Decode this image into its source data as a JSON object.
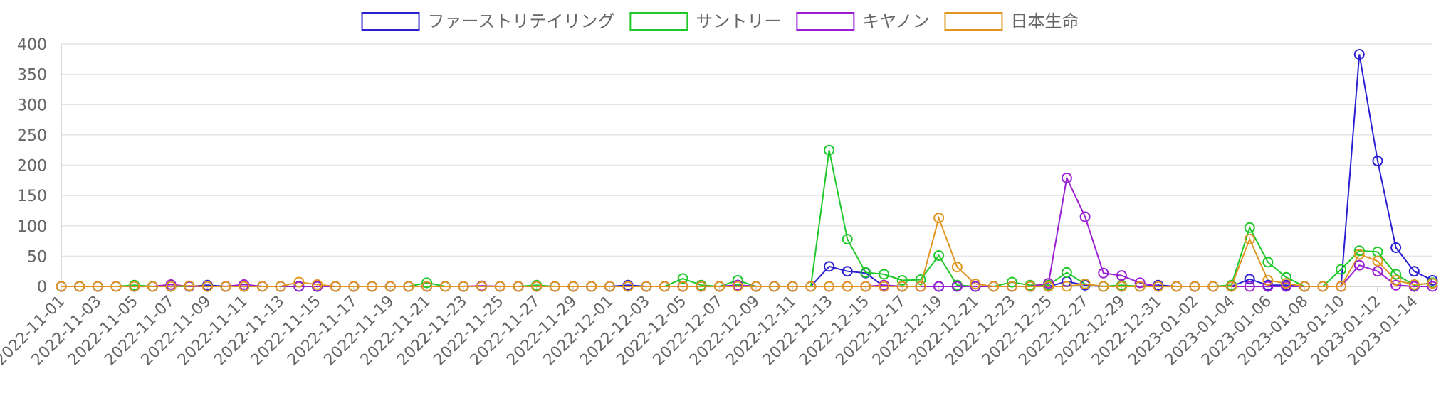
{
  "chart_data": {
    "type": "line",
    "title": "",
    "xlabel": "",
    "ylabel": "",
    "ylim": [
      0,
      400
    ],
    "yticks": [
      0,
      50,
      100,
      150,
      200,
      250,
      300,
      350,
      400
    ],
    "grid": true,
    "legend_position": "top-center",
    "x": [
      "2022-11-01",
      "2022-11-02",
      "2022-11-03",
      "2022-11-04",
      "2022-11-05",
      "2022-11-06",
      "2022-11-07",
      "2022-11-08",
      "2022-11-09",
      "2022-11-10",
      "2022-11-11",
      "2022-11-12",
      "2022-11-13",
      "2022-11-14",
      "2022-11-15",
      "2022-11-16",
      "2022-11-17",
      "2022-11-18",
      "2022-11-19",
      "2022-11-20",
      "2022-11-21",
      "2022-11-22",
      "2022-11-23",
      "2022-11-24",
      "2022-11-25",
      "2022-11-26",
      "2022-11-27",
      "2022-11-28",
      "2022-11-29",
      "2022-11-30",
      "2022-12-01",
      "2022-12-02",
      "2022-12-03",
      "2022-12-04",
      "2022-12-05",
      "2022-12-06",
      "2022-12-07",
      "2022-12-08",
      "2022-12-09",
      "2022-12-10",
      "2022-12-11",
      "2022-12-12",
      "2022-12-13",
      "2022-12-14",
      "2022-12-15",
      "2022-12-16",
      "2022-12-17",
      "2022-12-18",
      "2022-12-19",
      "2022-12-20",
      "2022-12-21",
      "2022-12-22",
      "2022-12-23",
      "2022-12-24",
      "2022-12-25",
      "2022-12-26",
      "2022-12-27",
      "2022-12-28",
      "2022-12-29",
      "2022-12-30",
      "2022-12-31",
      "2023-01-01",
      "2023-01-02",
      "2023-01-03",
      "2023-01-04",
      "2023-01-05",
      "2023-01-06",
      "2023-01-07",
      "2023-01-08",
      "2023-01-09",
      "2023-01-10",
      "2023-01-11",
      "2023-01-12",
      "2023-01-13",
      "2023-01-14",
      "2023-01-15"
    ],
    "x_tick_labels": [
      "2022-11-01",
      "2022-11-03",
      "2022-11-05",
      "2022-11-07",
      "2022-11-09",
      "2022-11-11",
      "2022-11-13",
      "2022-11-15",
      "2022-11-17",
      "2022-11-19",
      "2022-11-21",
      "2022-11-23",
      "2022-11-25",
      "2022-11-27",
      "2022-11-29",
      "2022-12-01",
      "2022-12-03",
      "2022-12-05",
      "2022-12-07",
      "2022-12-09",
      "2022-12-11",
      "2022-12-13",
      "2022-12-15",
      "2022-12-17",
      "2022-12-19",
      "2022-12-21",
      "2022-12-23",
      "2022-12-25",
      "2022-12-27",
      "2022-12-29",
      "2022-12-31",
      "2023-01-02",
      "2023-01-04",
      "2023-01-06",
      "2023-01-08",
      "2023-01-10",
      "2023-01-12",
      "2023-01-14"
    ],
    "series": [
      {
        "name": "ファーストリテイリング",
        "color": "#2a1fd1",
        "values": [
          0,
          0,
          0,
          0,
          0,
          0,
          0,
          0,
          2,
          0,
          0,
          0,
          0,
          0,
          0,
          0,
          0,
          0,
          0,
          0,
          0,
          0,
          0,
          0,
          0,
          0,
          0,
          0,
          0,
          0,
          0,
          2,
          0,
          0,
          0,
          0,
          0,
          2,
          0,
          0,
          0,
          0,
          33,
          25,
          22,
          0,
          0,
          0,
          0,
          0,
          0,
          0,
          0,
          0,
          0,
          8,
          2,
          0,
          0,
          0,
          2,
          0,
          0,
          0,
          0,
          12,
          2,
          2,
          0,
          0,
          0,
          383,
          207,
          64,
          25,
          10
        ]
      },
      {
        "name": "サントリー",
        "color": "#1fc82a",
        "values": [
          0,
          0,
          0,
          0,
          2,
          0,
          0,
          0,
          0,
          0,
          0,
          0,
          0,
          0,
          0,
          0,
          0,
          0,
          0,
          0,
          6,
          0,
          0,
          0,
          0,
          0,
          2,
          0,
          0,
          0,
          0,
          0,
          0,
          0,
          13,
          2,
          0,
          10,
          0,
          0,
          0,
          0,
          225,
          78,
          23,
          20,
          10,
          11,
          51,
          2,
          0,
          0,
          7,
          2,
          2,
          23,
          4,
          0,
          2,
          0,
          0,
          0,
          0,
          0,
          2,
          97,
          40,
          15,
          0,
          0,
          28,
          59,
          57,
          20,
          2,
          6
        ]
      },
      {
        "name": "キヤノン",
        "color": "#9a1fd1",
        "values": [
          0,
          0,
          0,
          0,
          0,
          0,
          3,
          0,
          0,
          0,
          3,
          0,
          0,
          0,
          0,
          0,
          0,
          0,
          0,
          0,
          0,
          0,
          0,
          1,
          0,
          0,
          0,
          0,
          0,
          0,
          0,
          0,
          0,
          0,
          0,
          0,
          0,
          2,
          0,
          0,
          0,
          0,
          0,
          0,
          0,
          2,
          0,
          0,
          0,
          0,
          0,
          0,
          0,
          0,
          5,
          179,
          115,
          22,
          18,
          6,
          0,
          0,
          0,
          0,
          0,
          0,
          0,
          0,
          0,
          0,
          0,
          35,
          25,
          2,
          0,
          0
        ]
      },
      {
        "name": "日本生命",
        "color": "#e0961f",
        "values": [
          0,
          0,
          0,
          0,
          0,
          0,
          0,
          1,
          0,
          0,
          0,
          0,
          0,
          7,
          3,
          0,
          0,
          0,
          0,
          0,
          0,
          0,
          0,
          0,
          0,
          0,
          0,
          0,
          0,
          0,
          0,
          0,
          0,
          0,
          0,
          0,
          0,
          0,
          0,
          0,
          0,
          0,
          0,
          0,
          0,
          0,
          0,
          0,
          113,
          32,
          4,
          0,
          0,
          0,
          0,
          0,
          4,
          0,
          0,
          0,
          0,
          0,
          0,
          0,
          0,
          78,
          10,
          5,
          0,
          0,
          0,
          53,
          42,
          10,
          3,
          5
        ]
      }
    ]
  }
}
